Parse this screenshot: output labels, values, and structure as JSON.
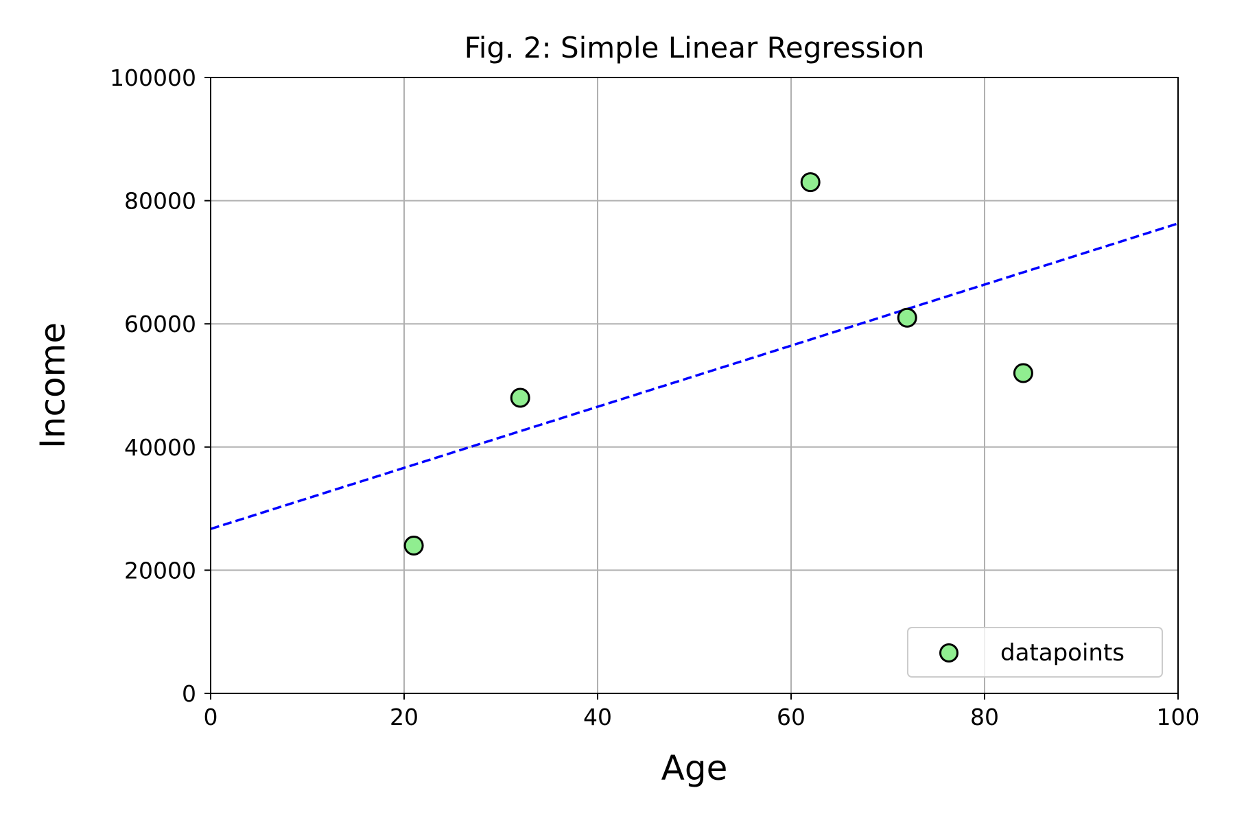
{
  "chart_data": {
    "type": "scatter",
    "title": "Fig. 2: Simple Linear Regression",
    "xlabel": "Age",
    "ylabel": "Income",
    "xlim": [
      0,
      100
    ],
    "ylim": [
      0,
      100000
    ],
    "xticks": [
      0,
      20,
      40,
      60,
      80,
      100
    ],
    "yticks": [
      0,
      20000,
      40000,
      60000,
      80000,
      100000
    ],
    "grid": true,
    "legend_position": "lower right",
    "series": [
      {
        "name": "datapoints",
        "kind": "scatter",
        "color": "#90ee90",
        "edge_color": "#000000",
        "points": [
          {
            "x": 21,
            "y": 24000
          },
          {
            "x": 32,
            "y": 48000
          },
          {
            "x": 62,
            "y": 83000
          },
          {
            "x": 72,
            "y": 61000
          },
          {
            "x": 84,
            "y": 52000
          }
        ]
      },
      {
        "kind": "line",
        "style": "dashed",
        "color": "#0000ff",
        "points": [
          {
            "x": 0,
            "y": 26700
          },
          {
            "x": 100,
            "y": 76300
          }
        ]
      }
    ]
  }
}
